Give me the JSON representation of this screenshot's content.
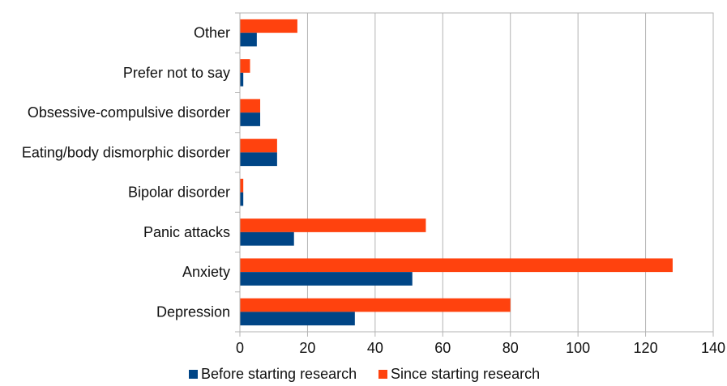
{
  "chart_data": {
    "type": "bar",
    "orientation": "horizontal",
    "categories": [
      "Depression",
      "Anxiety",
      "Panic attacks",
      "Bipolar disorder",
      "Eating/body dismorphic disorder",
      "Obsessive-compulsive disorder",
      "Prefer not to say",
      "Other"
    ],
    "series": [
      {
        "name": "Before starting research",
        "color": "#004586",
        "values": [
          34,
          51,
          16,
          1,
          11,
          6,
          1,
          5
        ]
      },
      {
        "name": "Since starting research",
        "color": "#ff420e",
        "values": [
          80,
          128,
          55,
          1,
          11,
          6,
          3,
          17
        ]
      }
    ],
    "xlim": [
      0,
      140
    ],
    "xticks": [
      0,
      20,
      40,
      60,
      80,
      100,
      120,
      140
    ],
    "grid": "vertical",
    "legend_position": "bottom",
    "title": "",
    "xlabel": "",
    "ylabel": ""
  }
}
